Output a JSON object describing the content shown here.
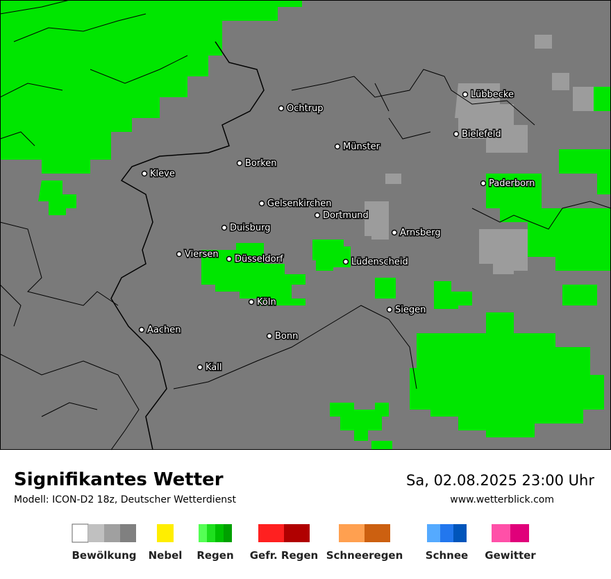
{
  "header": {
    "title": "Signifikantes Wetter",
    "model": "Modell: ICON-D2 18z, Deutscher Wetterdienst",
    "datetime": "Sa, 02.08.2025 23:00 Uhr",
    "website": "www.wetterblick.com"
  },
  "cities": [
    {
      "label": "Ochtrup"
    },
    {
      "label": "Lübbecke"
    },
    {
      "label": "Bielefeld"
    },
    {
      "label": "Münster"
    },
    {
      "label": "Borken"
    },
    {
      "label": "Kleve"
    },
    {
      "label": "Paderborn"
    },
    {
      "label": "Gelsenkirchen"
    },
    {
      "label": "Dortmund"
    },
    {
      "label": "Duisburg"
    },
    {
      "label": "Arnsberg"
    },
    {
      "label": "Viersen"
    },
    {
      "label": "Düsseldorf"
    },
    {
      "label": "Lüdenscheid"
    },
    {
      "label": "Köln"
    },
    {
      "label": "Siegen"
    },
    {
      "label": "Aachen"
    },
    {
      "label": "Bonn"
    },
    {
      "label": "Kall"
    }
  ],
  "legend": [
    {
      "label": "Bewölkung",
      "colors": [
        "#ffffff",
        "#c0c0c0",
        "#a0a0a0",
        "#808080"
      ]
    },
    {
      "label": "Nebel",
      "colors": [
        "#ffee00"
      ]
    },
    {
      "label": "Regen",
      "colors": [
        "#55ff55",
        "#1ee01e",
        "#00c000",
        "#00a000"
      ]
    },
    {
      "label": "Gefr. Regen",
      "colors": [
        "#ff2020",
        "#b00000"
      ]
    },
    {
      "label": "Schneeregen",
      "colors": [
        "#ffa050",
        "#cc6010"
      ]
    },
    {
      "label": "Schnee",
      "colors": [
        "#55aaff",
        "#2277ee",
        "#0055bb"
      ]
    },
    {
      "label": "Gewitter",
      "colors": [
        "#ff50a8",
        "#e0007a"
      ]
    }
  ]
}
